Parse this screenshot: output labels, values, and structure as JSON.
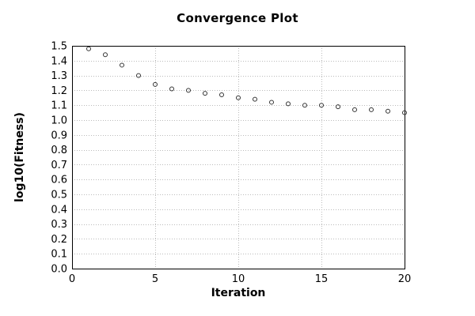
{
  "chart_data": {
    "type": "scatter",
    "title": "Convergence Plot",
    "xlabel": "Iteration",
    "ylabel": "log10(Fitness)",
    "x": [
      1,
      2,
      3,
      4,
      5,
      6,
      7,
      8,
      9,
      10,
      11,
      12,
      13,
      14,
      15,
      16,
      17,
      18,
      19,
      20
    ],
    "y": [
      1.48,
      1.44,
      1.37,
      1.3,
      1.24,
      1.21,
      1.2,
      1.18,
      1.17,
      1.15,
      1.14,
      1.12,
      1.11,
      1.1,
      1.1,
      1.09,
      1.07,
      1.07,
      1.06,
      1.05
    ],
    "xlim": [
      0,
      20
    ],
    "ylim": [
      0.0,
      1.5
    ],
    "xticks": [
      0,
      5,
      10,
      15,
      20
    ],
    "yticks": [
      0.0,
      0.1,
      0.2,
      0.3,
      0.4,
      0.5,
      0.6,
      0.7,
      0.8,
      0.9,
      1.0,
      1.1,
      1.2,
      1.3,
      1.4,
      1.5
    ],
    "ytick_decimals": 1,
    "grid": true,
    "grid_style": "dotted",
    "legend_position": "none",
    "marker": "open-circle",
    "marker_radius": 2.5,
    "colors": {
      "background": "#ffffff",
      "marker_stroke": "#333333",
      "grid": "#bbbbbb",
      "axis_border": "#000000",
      "text": "#000000"
    }
  }
}
